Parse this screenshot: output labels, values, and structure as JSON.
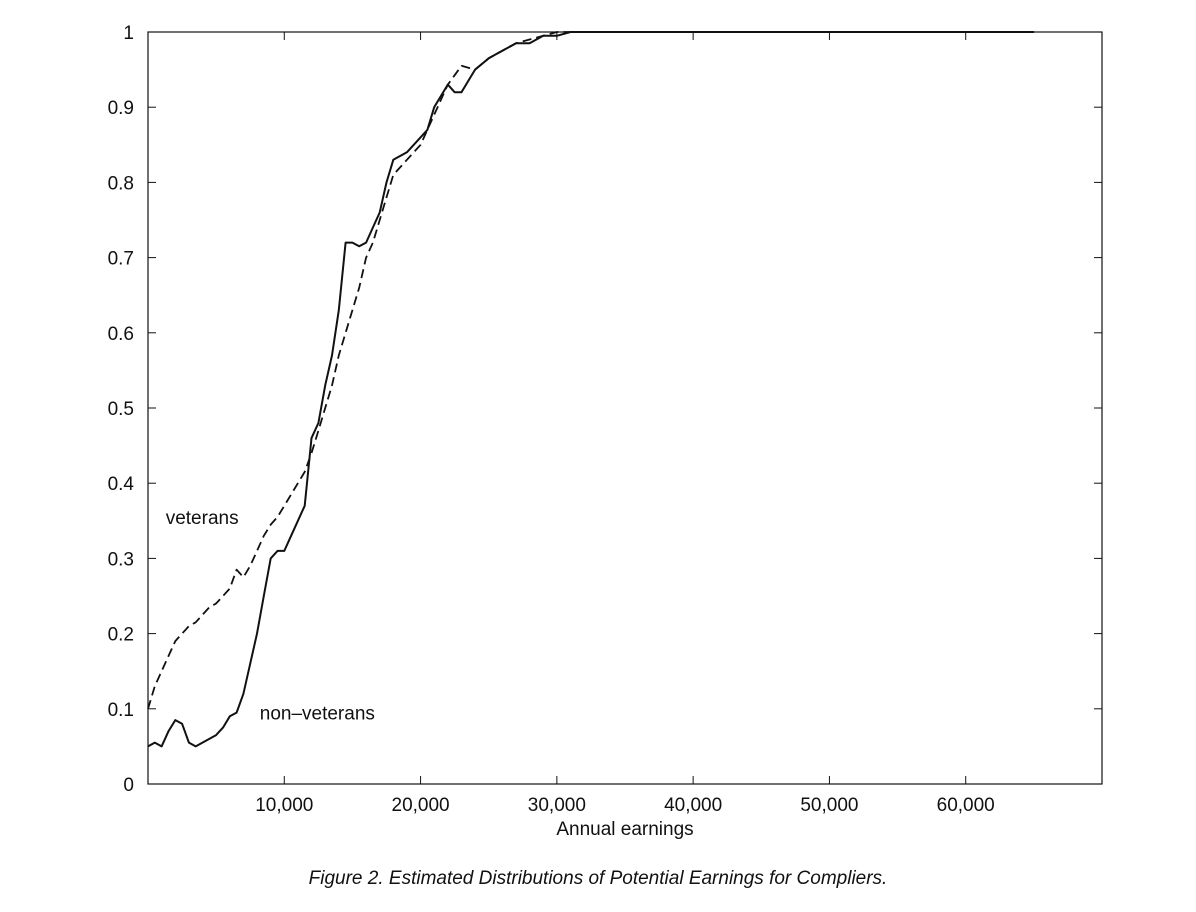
{
  "caption": "Figure 2.   Estimated Distributions of Potential Earnings for Compliers.",
  "chart_data": {
    "type": "line",
    "title": "",
    "xlabel": "Annual earnings",
    "ylabel": "",
    "xlim": [
      0,
      70000
    ],
    "ylim": [
      0,
      1
    ],
    "x_ticks": [
      10000,
      20000,
      30000,
      40000,
      50000,
      60000
    ],
    "x_tick_labels": [
      "10,000",
      "20,000",
      "30,000",
      "40,000",
      "50,000",
      "60,000"
    ],
    "y_ticks": [
      0,
      0.1,
      0.2,
      0.3,
      0.4,
      0.5,
      0.6,
      0.7,
      0.8,
      0.9,
      1
    ],
    "y_tick_labels": [
      "0",
      "0.1",
      "0.2",
      "0.3",
      "0.4",
      "0.5",
      "0.6",
      "0.7",
      "0.8",
      "0.9",
      "1"
    ],
    "grid": false,
    "annotations": [
      {
        "text": "veterans",
        "x": 1300,
        "y": 0.355
      },
      {
        "text": "non–veterans",
        "x": 8200,
        "y": 0.095
      }
    ],
    "series": [
      {
        "name": "veterans",
        "style": "dashed",
        "x": [
          0,
          500,
          1000,
          1500,
          2000,
          2500,
          3000,
          3500,
          4000,
          4500,
          5000,
          5500,
          6000,
          6500,
          7000,
          7500,
          8000,
          8500,
          9000,
          9500,
          10000,
          10500,
          11000,
          11500,
          12000,
          12500,
          13000,
          13500,
          14000,
          14500,
          15000,
          15500,
          16000,
          16500,
          17000,
          17500,
          18000,
          19000,
          20000,
          21000,
          22000,
          23000,
          24000,
          25000,
          26000,
          27000,
          28000,
          29000,
          30000,
          31000,
          32000,
          33000,
          35000,
          37000,
          40000,
          45000,
          50000,
          55000,
          60000,
          65000
        ],
        "values": [
          0.1,
          0.13,
          0.15,
          0.17,
          0.19,
          0.2,
          0.21,
          0.215,
          0.225,
          0.235,
          0.24,
          0.25,
          0.26,
          0.285,
          0.275,
          0.29,
          0.31,
          0.33,
          0.345,
          0.355,
          0.37,
          0.385,
          0.4,
          0.415,
          0.44,
          0.47,
          0.5,
          0.53,
          0.57,
          0.6,
          0.63,
          0.66,
          0.7,
          0.72,
          0.75,
          0.78,
          0.81,
          0.83,
          0.85,
          0.89,
          0.93,
          0.955,
          0.95,
          0.965,
          0.975,
          0.985,
          0.99,
          0.995,
          1.0,
          1.0,
          1.0,
          1.0,
          1.0,
          1.0,
          1.0,
          1.0,
          1.0,
          1.0,
          1.0,
          1.0
        ]
      },
      {
        "name": "non–veterans",
        "style": "solid",
        "x": [
          0,
          500,
          1000,
          1500,
          2000,
          2500,
          3000,
          3500,
          4000,
          4500,
          5000,
          5500,
          6000,
          6500,
          7000,
          7500,
          8000,
          8500,
          9000,
          9500,
          10000,
          10500,
          11000,
          11500,
          12000,
          12500,
          13000,
          13500,
          14000,
          14500,
          15000,
          15500,
          16000,
          16500,
          17000,
          17500,
          18000,
          19000,
          20000,
          20500,
          21000,
          21500,
          22000,
          22500,
          23000,
          23500,
          24000,
          25000,
          26000,
          27000,
          28000,
          29000,
          30000,
          31000,
          32000,
          33000,
          35000,
          37000,
          40000,
          45000,
          50000,
          55000,
          60000,
          65000
        ],
        "values": [
          0.05,
          0.055,
          0.05,
          0.07,
          0.085,
          0.08,
          0.055,
          0.05,
          0.055,
          0.06,
          0.065,
          0.075,
          0.09,
          0.095,
          0.12,
          0.16,
          0.2,
          0.25,
          0.3,
          0.31,
          0.31,
          0.33,
          0.35,
          0.37,
          0.46,
          0.48,
          0.53,
          0.57,
          0.63,
          0.72,
          0.72,
          0.715,
          0.72,
          0.74,
          0.76,
          0.8,
          0.83,
          0.84,
          0.86,
          0.87,
          0.9,
          0.915,
          0.93,
          0.92,
          0.92,
          0.935,
          0.95,
          0.965,
          0.975,
          0.985,
          0.985,
          0.995,
          0.995,
          1.0,
          1.0,
          1.0,
          1.0,
          1.0,
          1.0,
          1.0,
          1.0,
          1.0,
          1.0,
          1.0
        ]
      }
    ]
  }
}
